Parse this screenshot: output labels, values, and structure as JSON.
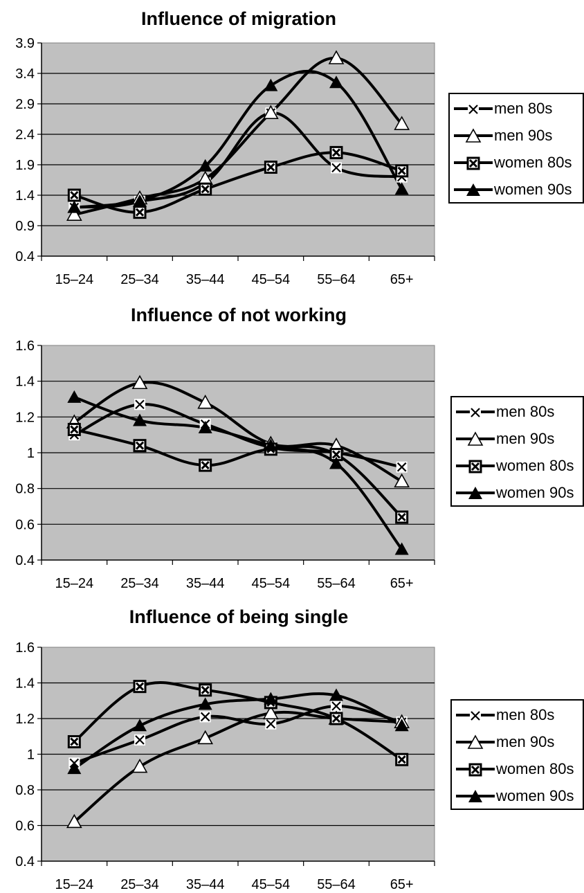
{
  "legend_labels": [
    "men 80s",
    "men 90s",
    "women 80s",
    "women 90s"
  ],
  "chart_data": [
    {
      "type": "line",
      "title": "Influence of migration",
      "categories": [
        "15–24",
        "25–34",
        "35–44",
        "45–54",
        "55–64",
        "65+"
      ],
      "yticks": [
        "3.9",
        "3.4",
        "2.9",
        "2.4",
        "1.9",
        "1.4",
        "0.9",
        "0.4"
      ],
      "ylim": [
        0.4,
        3.9
      ],
      "series": [
        {
          "name": "men 80s",
          "marker": "x",
          "values": [
            1.2,
            1.3,
            1.6,
            2.75,
            1.85,
            1.7
          ]
        },
        {
          "name": "men 90s",
          "marker": "triangle-open",
          "values": [
            1.08,
            1.35,
            1.67,
            2.75,
            3.65,
            2.57
          ]
        },
        {
          "name": "women 80s",
          "marker": "square-x",
          "values": [
            1.4,
            1.12,
            1.5,
            1.86,
            2.1,
            1.8
          ]
        },
        {
          "name": "women 90s",
          "marker": "triangle-filled",
          "values": [
            1.2,
            1.3,
            1.88,
            3.2,
            3.25,
            1.5
          ]
        }
      ],
      "grid": true,
      "legend": "right"
    },
    {
      "type": "line",
      "title": "Influence of not working",
      "categories": [
        "15–24",
        "25–34",
        "35–44",
        "45–54",
        "55–64",
        "65+"
      ],
      "yticks": [
        "1.6",
        "1.4",
        "1.2",
        "1",
        "0.8",
        "0.6",
        "0.4"
      ],
      "ylim": [
        0.4,
        1.6
      ],
      "series": [
        {
          "name": "men 80s",
          "marker": "x",
          "values": [
            1.1,
            1.27,
            1.16,
            1.03,
            1.0,
            0.92
          ]
        },
        {
          "name": "men 90s",
          "marker": "triangle-open",
          "values": [
            1.17,
            1.39,
            1.28,
            1.05,
            1.04,
            0.84
          ]
        },
        {
          "name": "women 80s",
          "marker": "square-x",
          "values": [
            1.13,
            1.04,
            0.93,
            1.02,
            0.99,
            0.64
          ]
        },
        {
          "name": "women 90s",
          "marker": "triangle-filled",
          "values": [
            1.31,
            1.18,
            1.14,
            1.04,
            0.94,
            0.46
          ]
        }
      ],
      "grid": true,
      "legend": "right"
    },
    {
      "type": "line",
      "title": "Influence of being single",
      "categories": [
        "15–24",
        "25–34",
        "35–44",
        "45–54",
        "55–64",
        "65+"
      ],
      "yticks": [
        "1.6",
        "1.4",
        "1.2",
        "1",
        "0.8",
        "0.6",
        "0.4"
      ],
      "ylim": [
        0.4,
        1.6
      ],
      "series": [
        {
          "name": "men 80s",
          "marker": "x",
          "values": [
            0.95,
            1.08,
            1.21,
            1.17,
            1.27,
            1.18
          ]
        },
        {
          "name": "men 90s",
          "marker": "triangle-open",
          "values": [
            0.62,
            0.93,
            1.09,
            1.23,
            1.2,
            1.18
          ]
        },
        {
          "name": "women 80s",
          "marker": "square-x",
          "values": [
            1.07,
            1.38,
            1.36,
            1.29,
            1.2,
            0.97
          ]
        },
        {
          "name": "women 90s",
          "marker": "triangle-filled",
          "values": [
            0.92,
            1.16,
            1.28,
            1.31,
            1.33,
            1.16
          ]
        }
      ],
      "grid": true,
      "legend": "right"
    }
  ]
}
